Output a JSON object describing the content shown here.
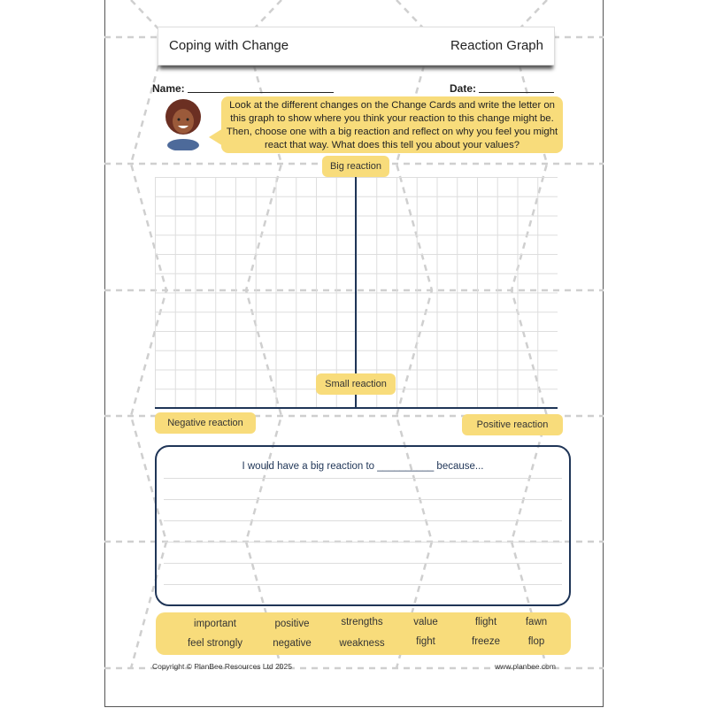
{
  "header": {
    "title": "Coping with Change",
    "subtitle": "Reaction Graph"
  },
  "fields": {
    "name_label": "Name:",
    "date_label": "Date:"
  },
  "instructions": "Look at the different changes on the Change Cards and write the letter on this graph to show where you think your reaction to this change might be. Then, choose one with a big reaction and reflect on why you feel you might react that way. What does this tell you about your values?",
  "graph": {
    "top_label": "Big reaction",
    "bottom_label": "Small reaction",
    "left_label": "Negative reaction",
    "right_label": "Positive reaction"
  },
  "reflection": {
    "prompt": "I would have a big reaction to __________ because..."
  },
  "word_bank": [
    [
      "important",
      "positive",
      "strengths",
      "value",
      "flight",
      "fawn"
    ],
    [
      "feel strongly",
      "negative",
      "weakness",
      "fight",
      "freeze",
      "flop"
    ]
  ],
  "footer": {
    "copyright": "Copyright © PlanBee Resources Ltd 2025",
    "website": "www.planbee.com"
  },
  "colors": {
    "accent": "#f8dc7b",
    "axis": "#1f3557"
  }
}
